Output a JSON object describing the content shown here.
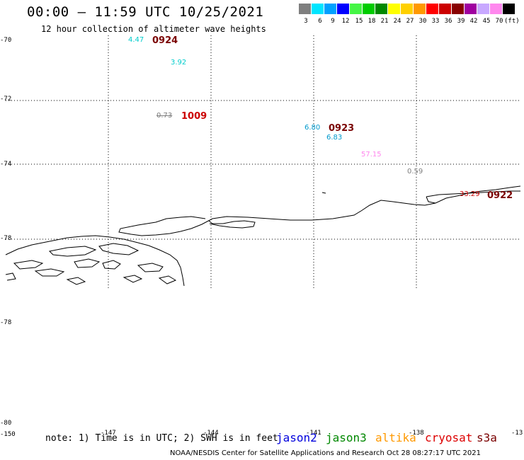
{
  "header": {
    "title": "00:00 — 11:59 UTC 10/25/2021",
    "subtitle": "12 hour collection of altimeter wave heights"
  },
  "legend": {
    "unit": "(ft)",
    "bins": [
      {
        "label": "3",
        "color": "#7f7f7f"
      },
      {
        "label": "6",
        "color": "#00e5ff"
      },
      {
        "label": "9",
        "color": "#00a0ff"
      },
      {
        "label": "12",
        "color": "#0000ff"
      },
      {
        "label": "15",
        "color": "#45f545"
      },
      {
        "label": "18",
        "color": "#00cc00"
      },
      {
        "label": "21",
        "color": "#008800"
      },
      {
        "label": "24",
        "color": "#ffff00"
      },
      {
        "label": "27",
        "color": "#ffd000"
      },
      {
        "label": "30",
        "color": "#ff9900"
      },
      {
        "label": "33",
        "color": "#ff0000"
      },
      {
        "label": "36",
        "color": "#cc0000"
      },
      {
        "label": "39",
        "color": "#880000"
      },
      {
        "label": "42",
        "color": "#a000a0"
      },
      {
        "label": "45",
        "color": "#c8a8ff"
      },
      {
        "label": "70",
        "color": "#ff88ee"
      },
      {
        "label": "",
        "color": "#000000"
      }
    ]
  },
  "axes": {
    "lat_labels": [
      "-70",
      "-72",
      "-74",
      "-78",
      "-78",
      "-80"
    ],
    "lon_labels": [
      "-150",
      "-147",
      "-144",
      "-141",
      "-138",
      "-13"
    ]
  },
  "observations": [
    {
      "value": "4.47",
      "color": "#00cccc"
    },
    {
      "value": "3.92",
      "color": "#00cccc"
    },
    {
      "value": "0.73",
      "color": "#7f7f7f"
    },
    {
      "value": "6.80",
      "color": "#0099cc"
    },
    {
      "value": "6.83",
      "color": "#0099cc"
    },
    {
      "value": "57.15",
      "color": "#ff88ee"
    },
    {
      "value": "0.59",
      "color": "#7f7f7f"
    },
    {
      "value": "33.29",
      "color": "#cc0000"
    }
  ],
  "pass_times": [
    {
      "label": "0924",
      "color": "#7a0000"
    },
    {
      "label": "1009",
      "color": "#cc0000"
    },
    {
      "label": "0923",
      "color": "#7a0000"
    },
    {
      "label": "0922",
      "color": "#7a0000"
    }
  ],
  "footer": {
    "note": "note: 1) Time is in UTC; 2) SWH is in feet",
    "satellites": [
      {
        "name": "jason2",
        "color": "#0000dd"
      },
      {
        "name": "jason3",
        "color": "#008800"
      },
      {
        "name": "altika",
        "color": "#ff9900"
      },
      {
        "name": "cryosat",
        "color": "#dd0000"
      },
      {
        "name": "s3a",
        "color": "#7a0000"
      }
    ],
    "credit": "NOAA/NESDIS Center for Satellite Applications and Research   Oct 28 08:27:17 UTC 2021"
  }
}
